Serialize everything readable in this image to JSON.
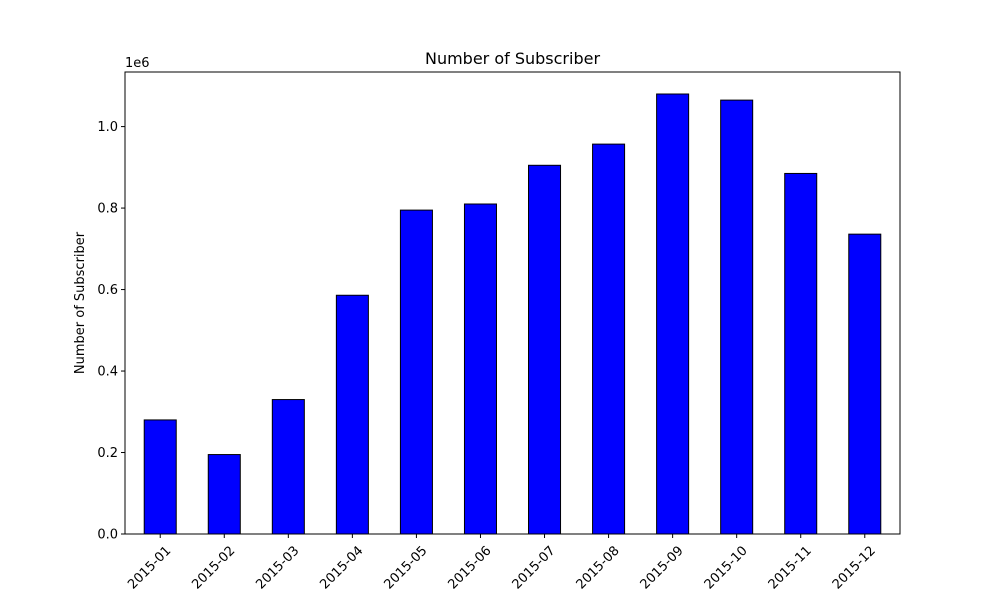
{
  "chart_data": {
    "type": "bar",
    "title": "Number of Subscriber",
    "xlabel": "",
    "ylabel": "Number of Subscriber",
    "offset_label": "1e6",
    "categories": [
      "2015-01",
      "2015-02",
      "2015-03",
      "2015-04",
      "2015-05",
      "2015-06",
      "2015-07",
      "2015-08",
      "2015-09",
      "2015-10",
      "2015-11",
      "2015-12"
    ],
    "values": [
      280000,
      195000,
      330000,
      586000,
      795000,
      810000,
      905000,
      957000,
      1080000,
      1065000,
      885000,
      736000
    ],
    "ylim": [
      0,
      1134000
    ],
    "yticks": [
      0,
      200000,
      400000,
      600000,
      800000,
      1000000
    ],
    "ytick_labels": [
      "0.0",
      "0.2",
      "0.4",
      "0.6",
      "0.8",
      "1.0"
    ],
    "bar_color": "#0000ff",
    "edge_color": "#000000",
    "grid": false,
    "legend": "none"
  }
}
